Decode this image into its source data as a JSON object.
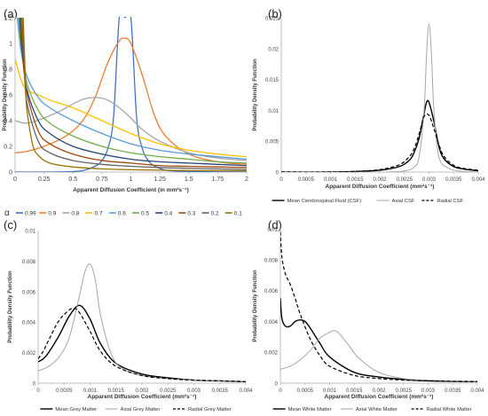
{
  "chart_data": [
    {
      "panel_label": "(a)",
      "type": "line",
      "xlabel": "Apparent Diffusion Coefficient (in mm²s⁻¹)",
      "ylabel": "Probability Density Function",
      "xlim": [
        0,
        2
      ],
      "ylim": [
        0,
        1.2
      ],
      "xticks": [
        "0",
        "0.25",
        "0.5",
        "0.75",
        "1",
        "1.25",
        "1.5",
        "1.75",
        "2"
      ],
      "yticks": [
        "0",
        "0.2",
        "0.4",
        "0.6",
        "0.8",
        "1",
        "1.2"
      ],
      "grid": false,
      "legend_position": "bottom",
      "legend_symbol": "α",
      "series": [
        {
          "name": "0.99",
          "color": "#4472c4",
          "x": [
            0,
            0.3,
            0.5,
            0.6,
            0.7,
            0.75,
            0.8,
            0.85,
            0.9,
            0.95,
            1.0,
            1.05,
            1.1,
            1.15,
            1.2,
            1.3,
            1.5,
            2.0
          ],
          "y": [
            0,
            0,
            0.004,
            0.015,
            0.05,
            0.09,
            0.18,
            0.42,
            1.2,
            1.2,
            1.2,
            0.42,
            0.18,
            0.09,
            0.05,
            0.015,
            0.004,
            0
          ]
        },
        {
          "name": "0.9",
          "color": "#ed7d31",
          "x": [
            0,
            0.1,
            0.25,
            0.4,
            0.5,
            0.6,
            0.7,
            0.8,
            0.9,
            0.95,
            1.0,
            1.1,
            1.2,
            1.3,
            1.5,
            1.75,
            2.0
          ],
          "y": [
            0.15,
            0.16,
            0.2,
            0.26,
            0.32,
            0.42,
            0.6,
            0.85,
            1.02,
            1.04,
            1.0,
            0.75,
            0.45,
            0.28,
            0.14,
            0.08,
            0.06
          ]
        },
        {
          "name": "0.8",
          "color": "#a5a5a5",
          "x": [
            0,
            0.1,
            0.25,
            0.4,
            0.5,
            0.6,
            0.7,
            0.8,
            0.9,
            1.0,
            1.1,
            1.25,
            1.5,
            1.75,
            2.0
          ],
          "y": [
            0.4,
            0.38,
            0.42,
            0.48,
            0.53,
            0.57,
            0.58,
            0.56,
            0.5,
            0.42,
            0.33,
            0.24,
            0.15,
            0.11,
            0.09
          ]
        },
        {
          "name": "0.7",
          "color": "#ffc000",
          "x": [
            0,
            0.05,
            0.1,
            0.2,
            0.3,
            0.5,
            0.75,
            1.0,
            1.25,
            1.5,
            1.75,
            2.0
          ],
          "y": [
            0.88,
            0.72,
            0.64,
            0.6,
            0.56,
            0.5,
            0.4,
            0.3,
            0.22,
            0.17,
            0.14,
            0.12
          ]
        },
        {
          "name": "0.6",
          "color": "#5b9bd5",
          "x": [
            0.02,
            0.05,
            0.1,
            0.2,
            0.3,
            0.5,
            0.75,
            1.0,
            1.25,
            1.5,
            1.75,
            2.0
          ],
          "y": [
            1.2,
            0.95,
            0.75,
            0.58,
            0.5,
            0.4,
            0.3,
            0.22,
            0.17,
            0.14,
            0.12,
            0.1
          ]
        },
        {
          "name": "0.5",
          "color": "#70ad47",
          "x": [
            0.03,
            0.05,
            0.1,
            0.2,
            0.3,
            0.5,
            0.75,
            1.0,
            1.25,
            1.5,
            1.75,
            2.0
          ],
          "y": [
            1.2,
            1.0,
            0.7,
            0.48,
            0.38,
            0.28,
            0.2,
            0.15,
            0.12,
            0.1,
            0.08,
            0.07
          ]
        },
        {
          "name": "0.4",
          "color": "#264478",
          "x": [
            0.04,
            0.06,
            0.1,
            0.2,
            0.3,
            0.5,
            0.75,
            1.0,
            1.25,
            1.5,
            1.75,
            2.0
          ],
          "y": [
            1.2,
            0.95,
            0.65,
            0.4,
            0.3,
            0.2,
            0.14,
            0.1,
            0.08,
            0.07,
            0.06,
            0.05
          ]
        },
        {
          "name": "0.3",
          "color": "#9e480e",
          "x": [
            0.05,
            0.07,
            0.1,
            0.2,
            0.3,
            0.5,
            0.75,
            1.0,
            1.25,
            1.5,
            1.75,
            2.0
          ],
          "y": [
            1.2,
            0.9,
            0.62,
            0.32,
            0.22,
            0.14,
            0.09,
            0.07,
            0.05,
            0.045,
            0.04,
            0.035
          ]
        },
        {
          "name": "0.2",
          "color": "#636363",
          "x": [
            0.06,
            0.08,
            0.1,
            0.2,
            0.3,
            0.5,
            0.75,
            1.0,
            1.25,
            1.5,
            1.75,
            2.0
          ],
          "y": [
            1.2,
            0.85,
            0.55,
            0.24,
            0.15,
            0.09,
            0.06,
            0.045,
            0.035,
            0.03,
            0.025,
            0.02
          ]
        },
        {
          "name": "0.1",
          "color": "#997300",
          "x": [
            0.07,
            0.09,
            0.1,
            0.15,
            0.2,
            0.3,
            0.5,
            0.75,
            1.0,
            1.5,
            2.0
          ],
          "y": [
            1.2,
            0.7,
            0.5,
            0.22,
            0.13,
            0.07,
            0.04,
            0.025,
            0.018,
            0.012,
            0.01
          ]
        }
      ]
    },
    {
      "panel_label": "(b)",
      "type": "line",
      "xlabel": "Apparent Diffusion Coefficient (mm²s⁻¹)",
      "ylabel": "Probability Density Function",
      "xlim": [
        0,
        0.004
      ],
      "ylim": [
        0,
        0.025
      ],
      "xticks": [
        "0",
        "0.0005",
        "0.001",
        "0.0015",
        "0.002",
        "0.0025",
        "0.003",
        "0.0035",
        "0.004"
      ],
      "yticks": [
        "0",
        "0.005",
        "0.01",
        "0.015",
        "0.02",
        "0.025"
      ],
      "grid": false,
      "legend_position": "bottom",
      "series": [
        {
          "name": "Mean Cerebrospinal Fluid (CSF)",
          "color": "#000000",
          "dash": "solid",
          "width": 1.4,
          "x": [
            0,
            0.001,
            0.0015,
            0.002,
            0.0024,
            0.0026,
            0.0027,
            0.0028,
            0.0029,
            0.00295,
            0.003,
            0.0031,
            0.0032,
            0.0033,
            0.0035,
            0.0037,
            0.004
          ],
          "y": [
            0,
            0,
            0.0001,
            0.0003,
            0.0009,
            0.0019,
            0.0032,
            0.0055,
            0.0095,
            0.0113,
            0.0113,
            0.0082,
            0.0042,
            0.0022,
            0.0009,
            0.0005,
            0.0002
          ]
        },
        {
          "name": "Axial CSF",
          "color": "#a6a6a6",
          "dash": "solid",
          "width": 1.0,
          "x": [
            0,
            0.002,
            0.0025,
            0.0027,
            0.0028,
            0.0029,
            0.00295,
            0.003,
            0.00305,
            0.0031,
            0.0032,
            0.0034,
            0.0037,
            0.004
          ],
          "y": [
            0,
            0,
            0.0002,
            0.0008,
            0.0025,
            0.01,
            0.019,
            0.024,
            0.019,
            0.01,
            0.0025,
            0.0006,
            0.0001,
            0
          ]
        },
        {
          "name": "Radial CSF",
          "color": "#000000",
          "dash": "dashed",
          "width": 1.2,
          "x": [
            0,
            0.001,
            0.0015,
            0.002,
            0.0024,
            0.0026,
            0.0027,
            0.0028,
            0.0029,
            0.003,
            0.0031,
            0.0032,
            0.0033,
            0.0035,
            0.0037,
            0.004
          ],
          "y": [
            0,
            0,
            0.0001,
            0.0004,
            0.0012,
            0.0025,
            0.0038,
            0.0062,
            0.009,
            0.0092,
            0.007,
            0.0045,
            0.0026,
            0.0011,
            0.0006,
            0.0003
          ]
        }
      ]
    },
    {
      "panel_label": "(c)",
      "type": "line",
      "xlabel": "Apparent Diffusion Coefficient (mm²s⁻¹)",
      "ylabel": "Probability Density Function",
      "xlim": [
        0,
        0.004
      ],
      "ylim": [
        0,
        0.01
      ],
      "xticks": [
        "0",
        "0.0005",
        "0.001",
        "0.0015",
        "0.002",
        "0.0025",
        "0.003",
        "0.0035",
        "0.004"
      ],
      "yticks": [
        "0",
        "0.002",
        "0.004",
        "0.006",
        "0.008",
        "0.01"
      ],
      "grid": false,
      "legend_position": "bottom",
      "series": [
        {
          "name": "Mean Grey Matter",
          "color": "#000000",
          "dash": "solid",
          "width": 1.4,
          "x": [
            0,
            0.0001,
            0.0002,
            0.0004,
            0.0006,
            0.0008,
            0.001,
            0.0012,
            0.0015,
            0.002,
            0.0025,
            0.003,
            0.0035,
            0.004
          ],
          "y": [
            0.0014,
            0.0016,
            0.002,
            0.0031,
            0.0044,
            0.0051,
            0.0042,
            0.0026,
            0.0013,
            0.0006,
            0.00035,
            0.0002,
            0.00015,
            0.0001
          ]
        },
        {
          "name": "Axial Grey Matter",
          "color": "#a6a6a6",
          "dash": "solid",
          "width": 1.0,
          "x": [
            0,
            0.0002,
            0.0004,
            0.0006,
            0.0008,
            0.0009,
            0.001,
            0.0011,
            0.0012,
            0.0014,
            0.0016,
            0.002,
            0.0025,
            0.003,
            0.004
          ],
          "y": [
            0.0008,
            0.0011,
            0.0017,
            0.003,
            0.0058,
            0.0073,
            0.0078,
            0.0068,
            0.0045,
            0.002,
            0.001,
            0.0005,
            0.0003,
            0.0002,
            0.0001
          ]
        },
        {
          "name": "Radial Grey Matter",
          "color": "#000000",
          "dash": "dashed",
          "width": 1.2,
          "x": [
            0,
            0.0001,
            0.0002,
            0.0004,
            0.0006,
            0.0007,
            0.0008,
            0.001,
            0.0012,
            0.0015,
            0.002,
            0.0025,
            0.003,
            0.0035,
            0.004
          ],
          "y": [
            0.0016,
            0.0021,
            0.0028,
            0.0041,
            0.0048,
            0.0049,
            0.0046,
            0.0034,
            0.0021,
            0.0011,
            0.0005,
            0.0003,
            0.0002,
            0.00015,
            0.0001
          ]
        }
      ]
    },
    {
      "panel_label": "(d)",
      "type": "line",
      "xlabel": "Apparent Diffusion Coefficient (mm²s⁻¹)",
      "ylabel": "Probability Density Function",
      "xlim": [
        0,
        0.004
      ],
      "ylim": [
        0,
        0.01
      ],
      "xticks": [
        "0",
        "0.0005",
        "0.001",
        "0.0015",
        "0.002",
        "0.0025",
        "0.003",
        "0.0035",
        "0.004"
      ],
      "yticks": [
        "0",
        "0.002",
        "0.004",
        "0.006",
        "0.008",
        "0.01"
      ],
      "grid": false,
      "legend_position": "bottom",
      "series": [
        {
          "name": "Mean White Matter",
          "color": "#000000",
          "dash": "solid",
          "width": 1.4,
          "x": [
            0,
            3e-05,
            0.0001,
            0.0002,
            0.0003,
            0.0004,
            0.0005,
            0.0006,
            0.0008,
            0.001,
            0.0015,
            0.002,
            0.0025,
            0.003,
            0.004
          ],
          "y": [
            0.0055,
            0.0042,
            0.0037,
            0.0037,
            0.004,
            0.0041,
            0.004,
            0.0036,
            0.0026,
            0.0017,
            0.0007,
            0.0004,
            0.00025,
            0.00015,
            0.0001
          ]
        },
        {
          "name": "Axial White Matter",
          "color": "#a6a6a6",
          "dash": "solid",
          "width": 1.0,
          "x": [
            0,
            0.0002,
            0.0004,
            0.0006,
            0.0008,
            0.001,
            0.0011,
            0.0012,
            0.0014,
            0.0016,
            0.002,
            0.0025,
            0.003,
            0.004
          ],
          "y": [
            0.0009,
            0.0011,
            0.0015,
            0.0021,
            0.0029,
            0.0033,
            0.0034,
            0.0032,
            0.0024,
            0.0016,
            0.0007,
            0.0003,
            0.0002,
            0.0001
          ]
        },
        {
          "name": "Radial White Matter",
          "color": "#000000",
          "dash": "dashed",
          "width": 1.2,
          "x": [
            0,
            3e-05,
            0.0001,
            0.0002,
            0.0003,
            0.0004,
            0.0006,
            0.0008,
            0.001,
            0.0015,
            0.002,
            0.0025,
            0.003,
            0.004
          ],
          "y": [
            0.0098,
            0.0082,
            0.0071,
            0.0064,
            0.0055,
            0.0045,
            0.0029,
            0.0018,
            0.0011,
            0.0005,
            0.0003,
            0.0002,
            0.00015,
            0.0001
          ]
        }
      ]
    }
  ]
}
